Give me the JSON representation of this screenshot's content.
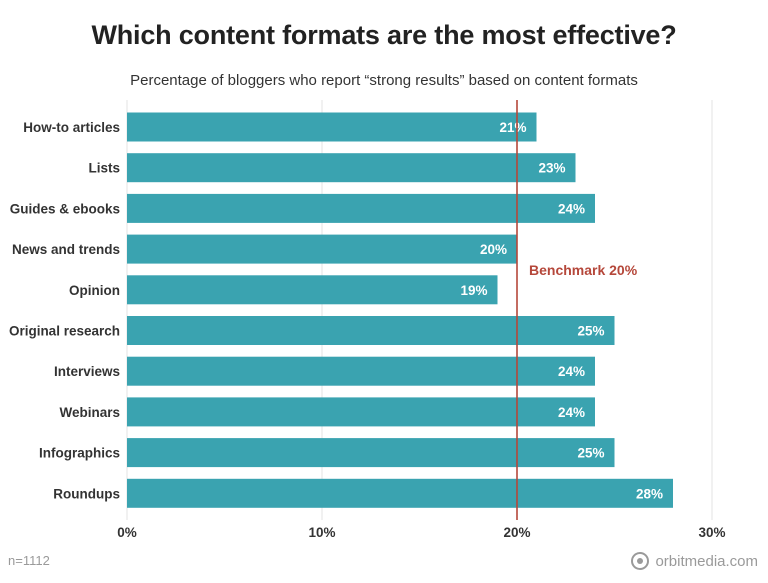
{
  "header": {
    "title": "Which content formats are the most effective?",
    "subtitle": "Percentage of bloggers who report “strong results” based on content formats"
  },
  "footer": {
    "sample_note": "n=1112",
    "brand_name": "orbitmedia.com"
  },
  "colors": {
    "bar": "#3aa3b0",
    "benchmark": "#b5473a",
    "grid": "#e3e3e3"
  },
  "chart_data": {
    "type": "bar",
    "orientation": "horizontal",
    "title": "Which content formats are the most effective?",
    "subtitle": "Percentage of bloggers who report “strong results” based on content formats",
    "categories": [
      "How-to articles",
      "Lists",
      "Guides & ebooks",
      "News and trends",
      "Opinion",
      "Original research",
      "Interviews",
      "Webinars",
      "Infographics",
      "Roundups"
    ],
    "values": [
      21,
      23,
      24,
      20,
      19,
      25,
      24,
      24,
      25,
      28
    ],
    "value_labels": [
      "21%",
      "23%",
      "24%",
      "20%",
      "19%",
      "25%",
      "24%",
      "24%",
      "25%",
      "28%"
    ],
    "xlim": [
      0,
      30
    ],
    "x_ticks": [
      0,
      10,
      20,
      30
    ],
    "x_tick_labels": [
      "0%",
      "10%",
      "20%",
      "30%"
    ],
    "grid": true,
    "benchmark": {
      "value": 20,
      "label": "Benchmark 20%"
    }
  }
}
